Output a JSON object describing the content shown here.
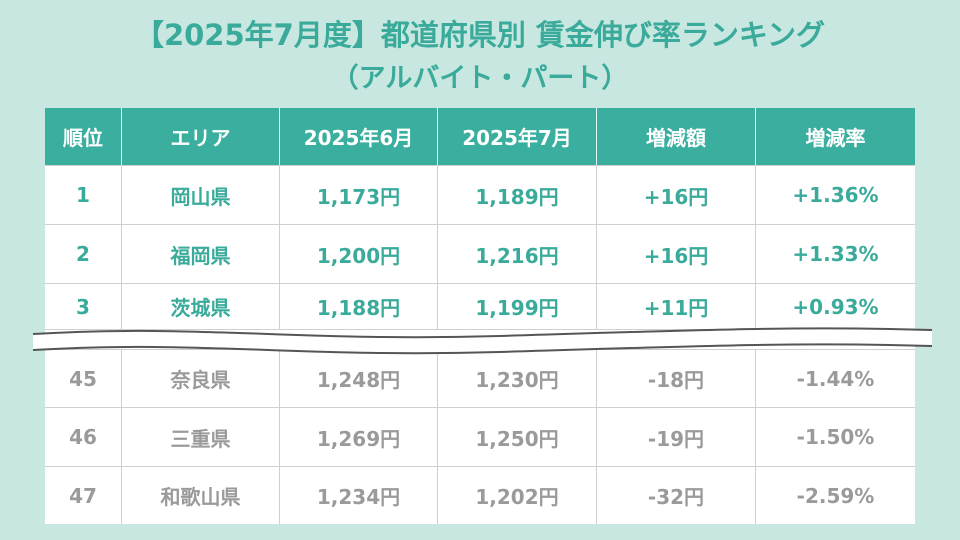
{
  "title": {
    "line1": "【2025年7月度】都道府県別 賃金伸び率ランキング",
    "line2": "（アルバイト・パート）"
  },
  "colors": {
    "accent": "#3aaf9f",
    "background": "#c9e7e1",
    "lower_text": "#9a9a9a"
  },
  "table": {
    "headers": [
      "順位",
      "エリア",
      "2025年6月",
      "2025年7月",
      "増減額",
      "増減率"
    ],
    "top_rows": [
      [
        "1",
        "岡山県",
        "1,173円",
        "1,189円",
        "+16円",
        "+1.36%"
      ],
      [
        "2",
        "福岡県",
        "1,200円",
        "1,216円",
        "+16円",
        "+1.33%"
      ],
      [
        "3",
        "茨城県",
        "1,188円",
        "1,199円",
        "+11円",
        "+0.93%"
      ]
    ],
    "bottom_rows": [
      [
        "45",
        "奈良県",
        "1,248円",
        "1,230円",
        "-18円",
        "-1.44%"
      ],
      [
        "46",
        "三重県",
        "1,269円",
        "1,250円",
        "-19円",
        "-1.50%"
      ],
      [
        "47",
        "和歌山県",
        "1,234円",
        "1,202円",
        "-32円",
        "-2.59%"
      ]
    ]
  }
}
